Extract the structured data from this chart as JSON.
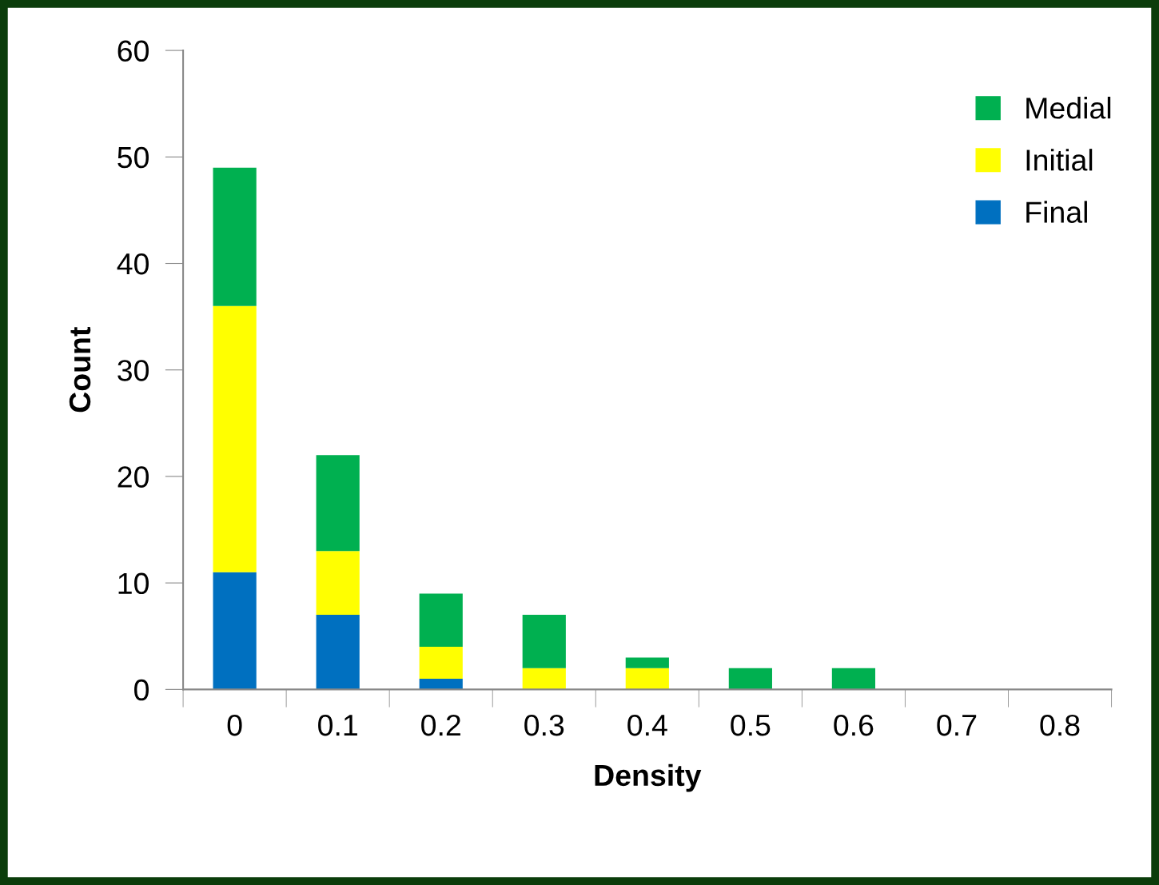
{
  "chart_data": {
    "type": "bar",
    "stacked": true,
    "xlabel": "Density",
    "ylabel": "Count",
    "categories": [
      "0",
      "0.1",
      "0.2",
      "0.3",
      "0.4",
      "0.5",
      "0.6",
      "0.7",
      "0.8"
    ],
    "series": [
      {
        "name": "Final",
        "color": "#0070c0",
        "values": [
          11,
          7,
          1,
          0,
          0,
          0,
          0,
          0,
          0
        ]
      },
      {
        "name": "Initial",
        "color": "#ffff00",
        "values": [
          25,
          6,
          3,
          2,
          2,
          0,
          0,
          0,
          0
        ]
      },
      {
        "name": "Medial",
        "color": "#00b050",
        "values": [
          13,
          9,
          5,
          5,
          1,
          2,
          2,
          0,
          0
        ]
      }
    ],
    "ylim": [
      0,
      60
    ],
    "yticks": [
      0,
      10,
      20,
      30,
      40,
      50,
      60
    ],
    "grid": false,
    "legend": "top right"
  }
}
